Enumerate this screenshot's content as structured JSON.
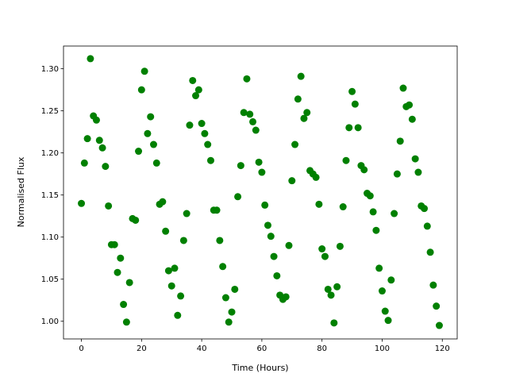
{
  "chart_data": {
    "type": "scatter",
    "color": "#008000",
    "x_label": "Time (Hours)",
    "y_label": "Normalised Flux",
    "x": [
      0,
      1,
      2,
      3,
      4,
      5,
      6,
      7,
      8,
      9,
      10,
      11,
      12,
      13,
      14,
      15,
      16,
      17,
      18,
      19,
      20,
      21,
      22,
      23,
      24,
      25,
      26,
      27,
      28,
      29,
      30,
      31,
      32,
      33,
      34,
      35,
      36,
      37,
      38,
      39,
      40,
      41,
      42,
      43,
      44,
      45,
      46,
      47,
      48,
      49,
      50,
      51,
      52,
      53,
      54,
      55,
      56,
      57,
      58,
      59,
      60,
      61,
      62,
      63,
      64,
      65,
      66,
      67,
      68,
      69,
      70,
      71,
      72,
      73,
      74,
      75,
      76,
      77,
      78,
      79,
      80,
      81,
      82,
      83,
      84,
      85,
      86,
      87,
      88,
      89,
      90,
      91,
      92,
      93,
      94,
      95,
      96,
      97,
      98,
      99,
      100,
      101,
      102,
      103,
      104,
      105,
      106,
      107,
      108,
      109,
      110,
      111,
      112,
      113,
      114,
      115,
      116,
      117,
      118,
      119
    ],
    "values": [
      1.14,
      1.188,
      1.217,
      1.312,
      1.244,
      1.239,
      1.215,
      1.206,
      1.184,
      1.137,
      1.091,
      1.091,
      1.058,
      1.075,
      1.02,
      0.999,
      1.046,
      1.122,
      1.12,
      1.202,
      1.275,
      1.297,
      1.223,
      1.243,
      1.21,
      1.188,
      1.139,
      1.142,
      1.107,
      1.06,
      1.042,
      1.063,
      1.007,
      1.03,
      1.096,
      1.128,
      1.233,
      1.286,
      1.268,
      1.275,
      1.235,
      1.223,
      1.21,
      1.191,
      1.132,
      1.132,
      1.096,
      1.065,
      1.028,
      0.999,
      1.011,
      1.038,
      1.148,
      1.185,
      1.248,
      1.288,
      1.246,
      1.237,
      1.227,
      1.189,
      1.177,
      1.138,
      1.114,
      1.101,
      1.077,
      1.054,
      1.031,
      1.026,
      1.029,
      1.09,
      1.167,
      1.21,
      1.264,
      1.291,
      1.241,
      1.248,
      1.179,
      1.175,
      1.171,
      1.139,
      1.086,
      1.077,
      1.038,
      1.031,
      0.998,
      1.041,
      1.089,
      1.136,
      1.191,
      1.23,
      1.273,
      1.258,
      1.23,
      1.185,
      1.18,
      1.152,
      1.149,
      1.13,
      1.108,
      1.063,
      1.036,
      1.012,
      1.001,
      1.049,
      1.128,
      1.175,
      1.214,
      1.277,
      1.255,
      1.257,
      1.24,
      1.193,
      1.177,
      1.137,
      1.134,
      1.113,
      1.082,
      1.043,
      1.018,
      0.995
    ],
    "xlim": [
      -5.95,
      124.95
    ],
    "ylim": [
      0.979,
      1.327
    ],
    "xticks": [
      0,
      20,
      40,
      60,
      80,
      100,
      120
    ],
    "yticks": [
      {
        "value": 1.0,
        "label": "1.00"
      },
      {
        "value": 1.05,
        "label": "1.05"
      },
      {
        "value": 1.1,
        "label": "1.10"
      },
      {
        "value": 1.15,
        "label": "1.15"
      },
      {
        "value": 1.2,
        "label": "1.20"
      },
      {
        "value": 1.25,
        "label": "1.25"
      },
      {
        "value": 1.3,
        "label": "1.30"
      }
    ],
    "grid": false
  }
}
